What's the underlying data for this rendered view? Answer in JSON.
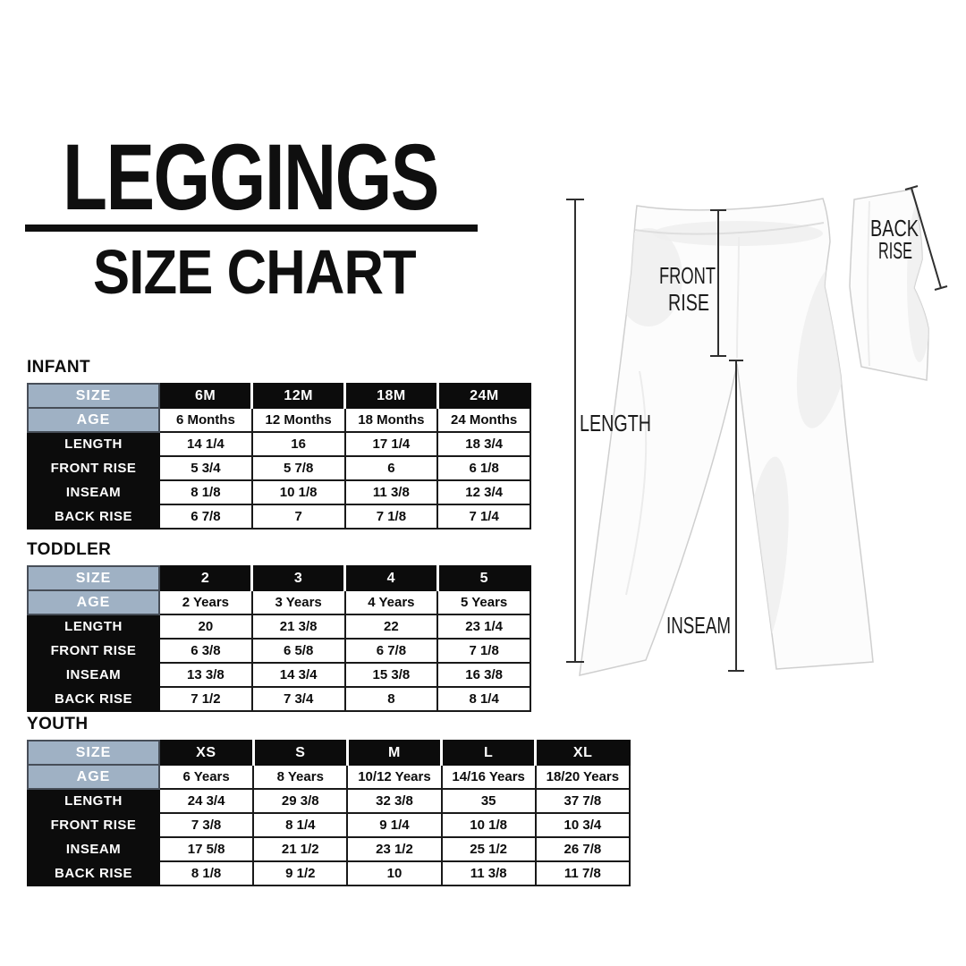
{
  "title": {
    "line1": "LEGGINGS",
    "line2": "SIZE CHART"
  },
  "colors": {
    "header_blue": "#9fb1c4",
    "table_black": "#0c0c0c",
    "text_black": "#0f0f0f"
  },
  "diagram": {
    "front_line1": "FRONT",
    "front_line2": "RISE",
    "back_line1": "BACK",
    "back_line2": "RISE",
    "length": "LENGTH",
    "inseam": "INSEAM"
  },
  "tables": [
    {
      "section": "INFANT",
      "rows": [
        {
          "label": "SIZE",
          "values": [
            "6M",
            "12M",
            "18M",
            "24M"
          ]
        },
        {
          "label": "AGE",
          "values": [
            "6 Months",
            "12 Months",
            "18 Months",
            "24 Months"
          ]
        },
        {
          "label": "LENGTH",
          "values": [
            "14 1/4",
            "16",
            "17 1/4",
            "18 3/4"
          ]
        },
        {
          "label": "FRONT RISE",
          "values": [
            "5 3/4",
            "5 7/8",
            "6",
            "6 1/8"
          ]
        },
        {
          "label": "INSEAM",
          "values": [
            "8 1/8",
            "10 1/8",
            "11 3/8",
            "12 3/4"
          ]
        },
        {
          "label": "BACK RISE",
          "values": [
            "6 7/8",
            "7",
            "7 1/8",
            "7 1/4"
          ]
        }
      ]
    },
    {
      "section": "TODDLER",
      "rows": [
        {
          "label": "SIZE",
          "values": [
            "2",
            "3",
            "4",
            "5"
          ]
        },
        {
          "label": "AGE",
          "values": [
            "2 Years",
            "3 Years",
            "4 Years",
            "5 Years"
          ]
        },
        {
          "label": "LENGTH",
          "values": [
            "20",
            "21 3/8",
            "22",
            "23 1/4"
          ]
        },
        {
          "label": "FRONT RISE",
          "values": [
            "6 3/8",
            "6 5/8",
            "6 7/8",
            "7 1/8"
          ]
        },
        {
          "label": "INSEAM",
          "values": [
            "13 3/8",
            "14 3/4",
            "15 3/8",
            "16 3/8"
          ]
        },
        {
          "label": "BACK RISE",
          "values": [
            "7 1/2",
            "7 3/4",
            "8",
            "8 1/4"
          ]
        }
      ]
    },
    {
      "section": "YOUTH",
      "rows": [
        {
          "label": "SIZE",
          "values": [
            "XS",
            "S",
            "M",
            "L",
            "XL"
          ]
        },
        {
          "label": "AGE",
          "values": [
            "6 Years",
            "8 Years",
            "10/12 Years",
            "14/16 Years",
            "18/20 Years"
          ]
        },
        {
          "label": "LENGTH",
          "values": [
            "24 3/4",
            "29 3/8",
            "32 3/8",
            "35",
            "37 7/8"
          ]
        },
        {
          "label": "FRONT RISE",
          "values": [
            "7 3/8",
            "8 1/4",
            "9 1/4",
            "10 1/8",
            "10 3/4"
          ]
        },
        {
          "label": "INSEAM",
          "values": [
            "17 5/8",
            "21 1/2",
            "23 1/2",
            "25 1/2",
            "26 7/8"
          ]
        },
        {
          "label": "BACK RISE",
          "values": [
            "8 1/8",
            "9 1/2",
            "10",
            "11 3/8",
            "11 7/8"
          ]
        }
      ]
    }
  ]
}
